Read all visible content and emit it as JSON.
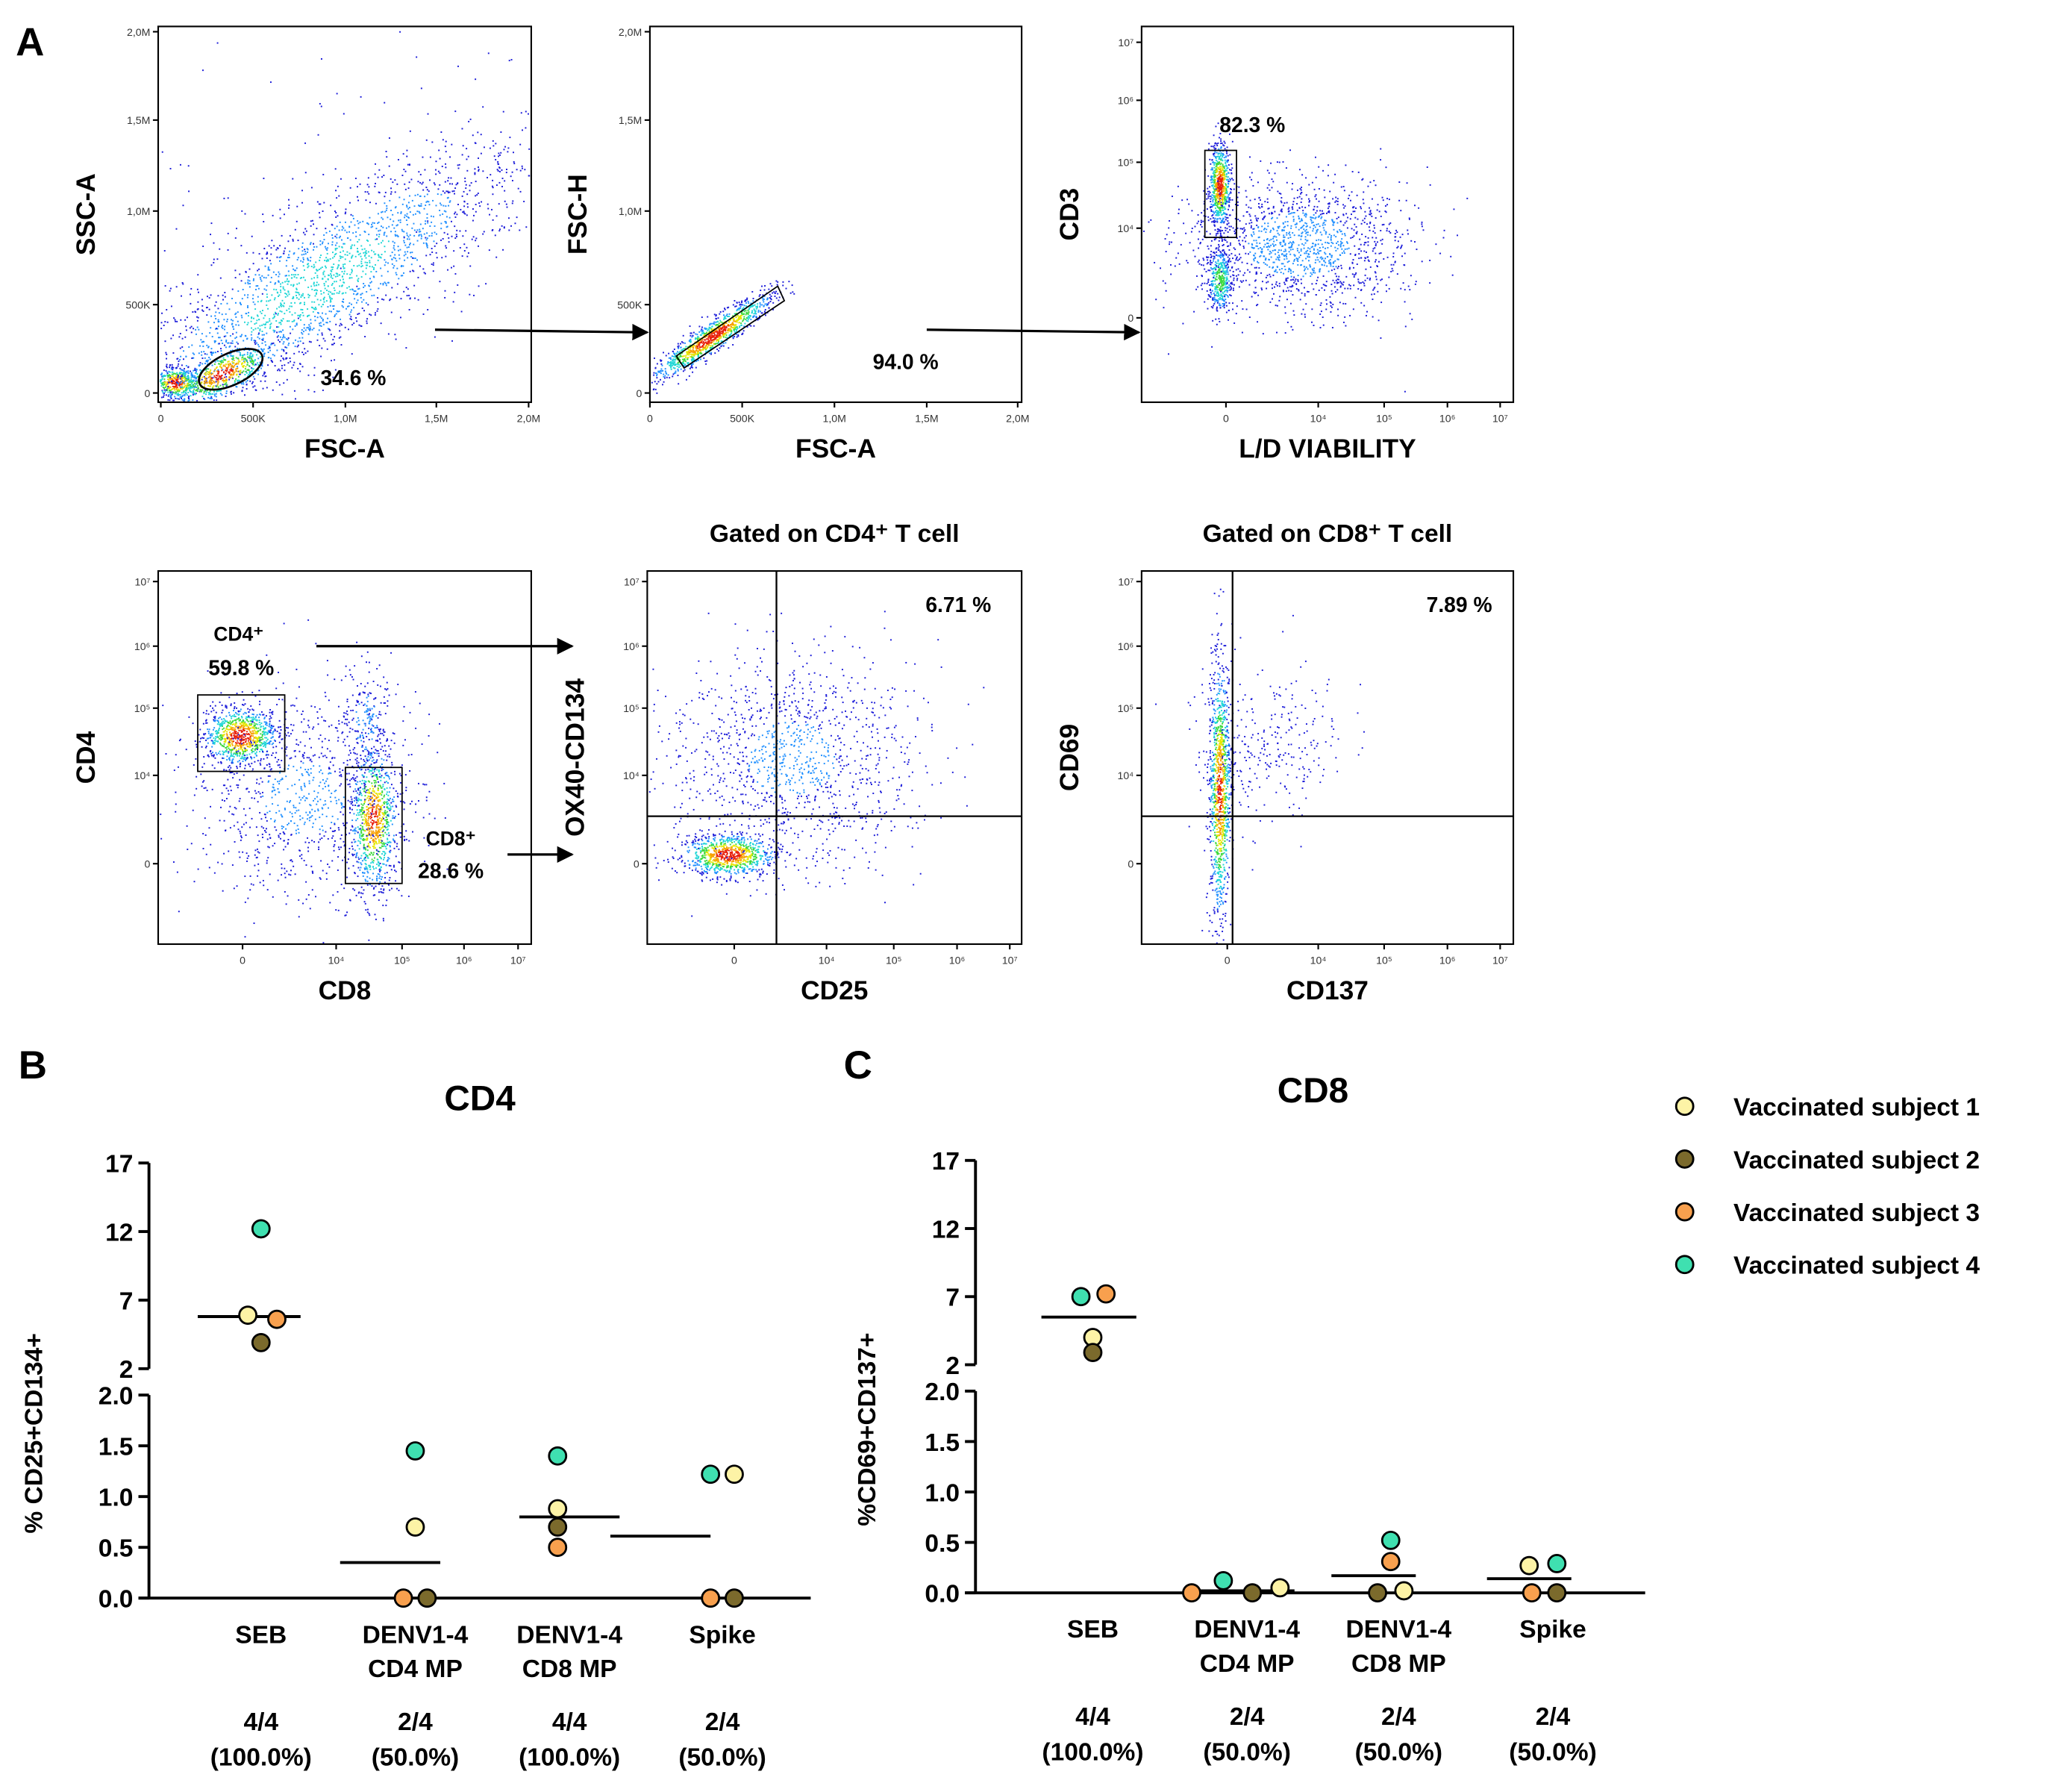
{
  "figure": {
    "panel_labels": [
      "A",
      "B",
      "C"
    ]
  },
  "flow_panels": [
    {
      "x_label": "FSC-A",
      "y_label": "SSC-A",
      "x_ticks": [
        "0",
        "500K",
        "1,0M",
        "1,5M",
        "2,0M"
      ],
      "y_ticks": [
        "0",
        "500K",
        "1,0M",
        "1,5M",
        "2,0M"
      ],
      "gate_percent": "34.6 %"
    },
    {
      "x_label": "FSC-A",
      "y_label": "FSC-H",
      "x_ticks": [
        "0",
        "500K",
        "1,0M",
        "1,5M",
        "2,0M"
      ],
      "y_ticks": [
        "0",
        "500K",
        "1,0M",
        "1,5M",
        "2,0M"
      ],
      "gate_percent": "94.0 %"
    },
    {
      "x_label": "L/D VIABILITY",
      "y_label": "CD3",
      "x_ticks": [
        "0",
        "10⁴",
        "10⁵",
        "10⁶",
        "10⁷"
      ],
      "y_ticks": [
        "0",
        "10⁴",
        "10⁵",
        "10⁶",
        "10⁷"
      ],
      "gate_percent": "82.3 %"
    },
    {
      "x_label": "CD8",
      "y_label": "CD4",
      "x_ticks": [
        "0",
        "10⁴",
        "10⁵",
        "10⁶",
        "10⁷"
      ],
      "y_ticks": [
        "0",
        "10⁴",
        "10⁵",
        "10⁶",
        "10⁷"
      ],
      "gates": [
        {
          "name": "CD4⁺",
          "percent": "59.8 %"
        },
        {
          "name": "CD8⁺",
          "percent": "28.6 %"
        }
      ]
    },
    {
      "title": "Gated on CD4⁺ T cell",
      "x_label": "CD25",
      "y_label": "OX40-CD134",
      "x_ticks": [
        "0",
        "10⁴",
        "10⁵",
        "10⁶",
        "10⁷"
      ],
      "y_ticks": [
        "0",
        "10⁴",
        "10⁵",
        "10⁶",
        "10⁷"
      ],
      "gate_percent": "6.71 %"
    },
    {
      "title": "Gated on CD8⁺ T cell",
      "x_label": "CD137",
      "y_label": "CD69",
      "x_ticks": [
        "0",
        "10⁴",
        "10⁵",
        "10⁶",
        "10⁷"
      ],
      "y_ticks": [
        "0",
        "10⁴",
        "10⁵",
        "10⁶",
        "10⁷"
      ],
      "gate_percent": "7.89 %"
    }
  ],
  "legend": {
    "entries": [
      {
        "label": "Vaccinated subject 1",
        "color": "#fdf3a6"
      },
      {
        "label": "Vaccinated subject 2",
        "color": "#7b6a2c"
      },
      {
        "label": "Vaccinated subject 3",
        "color": "#f8a04e"
      },
      {
        "label": "Vaccinated subject 4",
        "color": "#3fe0b0"
      }
    ]
  },
  "chart_data": [
    {
      "type": "scatter",
      "title": "CD4",
      "ylabel": "% CD25+CD134+",
      "categories": [
        "SEB",
        "DENV1-4 CD4 MP",
        "DENV1-4 CD8 MP",
        "Spike"
      ],
      "category_lines": [
        [
          "SEB"
        ],
        [
          "DENV1-4",
          "CD4 MP"
        ],
        [
          "DENV1-4",
          "CD8 MP"
        ],
        [
          "Spike"
        ]
      ],
      "responders": [
        "4/4",
        "2/4",
        "4/4",
        "2/4"
      ],
      "responders_pct": [
        "(100.0%)",
        "(50.0%)",
        "(100.0%)",
        "(50.0%)"
      ],
      "y_ticks_upper": [
        "2",
        "7",
        "12",
        "17"
      ],
      "y_ticks_lower": [
        "0.0",
        "0.5",
        "1.0",
        "1.5",
        "2.0"
      ],
      "ylim_upper": [
        2,
        17
      ],
      "ylim_lower": [
        0,
        2
      ],
      "series": [
        {
          "name": "Vaccinated subject 1",
          "values": [
            5.9,
            0.7,
            0.88,
            1.22
          ]
        },
        {
          "name": "Vaccinated subject 2",
          "values": [
            3.9,
            0.0,
            0.7,
            0.0
          ]
        },
        {
          "name": "Vaccinated subject 3",
          "values": [
            5.6,
            0.0,
            0.5,
            0.0
          ]
        },
        {
          "name": "Vaccinated subject 4",
          "values": [
            12.2,
            1.45,
            1.4,
            1.22
          ]
        }
      ],
      "medians": [
        5.8,
        0.35,
        0.8,
        0.61
      ]
    },
    {
      "type": "scatter",
      "title": "CD8",
      "ylabel": "%CD69+CD137+",
      "categories": [
        "SEB",
        "DENV1-4 CD4 MP",
        "DENV1-4 CD8 MP",
        "Spike"
      ],
      "category_lines": [
        [
          "SEB"
        ],
        [
          "DENV1-4",
          "CD4 MP"
        ],
        [
          "DENV1-4",
          "CD8 MP"
        ],
        [
          "Spike"
        ]
      ],
      "responders": [
        "4/4",
        "2/4",
        "2/4",
        "2/4"
      ],
      "responders_pct": [
        "(100.0%)",
        "(50.0%)",
        "(50.0%)",
        "(50.0%)"
      ],
      "y_ticks_upper": [
        "2",
        "7",
        "12",
        "17"
      ],
      "y_ticks_lower": [
        "0.0",
        "0.5",
        "1.0",
        "1.5",
        "2.0"
      ],
      "ylim_upper": [
        2,
        17
      ],
      "ylim_lower": [
        0,
        2
      ],
      "series": [
        {
          "name": "Vaccinated subject 1",
          "values": [
            4.0,
            0.05,
            0.02,
            0.27
          ]
        },
        {
          "name": "Vaccinated subject 2",
          "values": [
            2.9,
            0.0,
            0.0,
            0.0
          ]
        },
        {
          "name": "Vaccinated subject 3",
          "values": [
            7.2,
            0.0,
            0.31,
            0.0
          ]
        },
        {
          "name": "Vaccinated subject 4",
          "values": [
            7.0,
            0.12,
            0.52,
            0.29
          ]
        }
      ],
      "medians": [
        5.5,
        0.02,
        0.17,
        0.14
      ]
    }
  ]
}
